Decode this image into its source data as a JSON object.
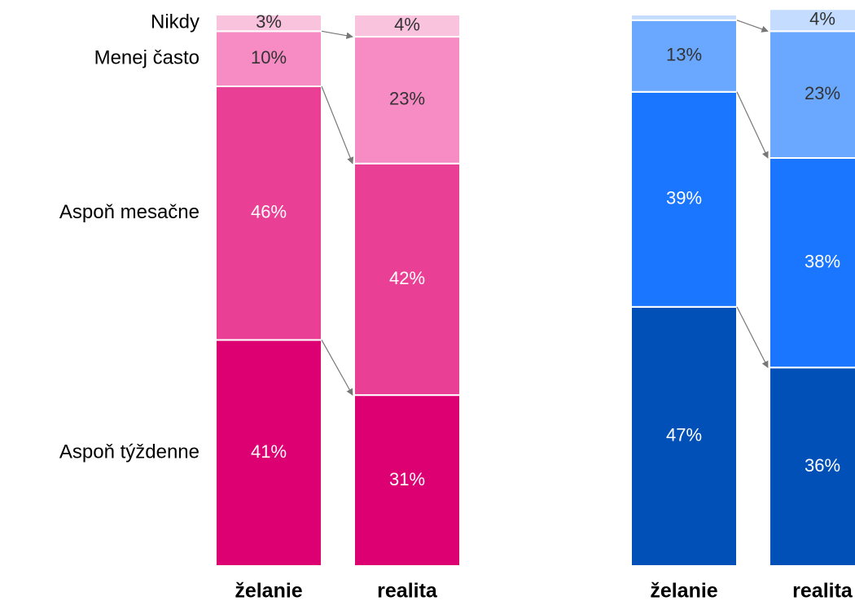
{
  "chart_data": [
    {
      "type": "stacked_bar",
      "categories": [
        "želanie",
        "realita"
      ],
      "ylim": [
        0,
        100
      ],
      "series": [
        {
          "name": "Aspoň týždenne",
          "color": "#dc0073",
          "values": [
            41,
            31
          ],
          "value_labels": [
            "41%",
            "31%"
          ]
        },
        {
          "name": "Aspoň mesačne",
          "color": "#e94096",
          "values": [
            46,
            42
          ],
          "value_labels": [
            "46%",
            "42%"
          ]
        },
        {
          "name": "Menej často",
          "color": "#f78cc4",
          "values": [
            10,
            23
          ],
          "value_labels": [
            "10%",
            "23%"
          ]
        },
        {
          "name": "Nikdy",
          "color": "#f9c3de",
          "values": [
            3,
            4
          ],
          "value_labels": [
            "3%",
            "4%"
          ]
        }
      ]
    },
    {
      "type": "stacked_bar",
      "categories": [
        "želanie",
        "realita"
      ],
      "ylim": [
        0,
        100
      ],
      "series": [
        {
          "color": "#0050b8",
          "values": [
            47,
            36
          ],
          "value_labels": [
            "47%",
            "36%"
          ]
        },
        {
          "color": "#1a75ff",
          "values": [
            39,
            38
          ],
          "value_labels": [
            "39%",
            "38%"
          ]
        },
        {
          "color": "#6aa8ff",
          "values": [
            13,
            23
          ],
          "value_labels": [
            "13%",
            "23%"
          ]
        },
        {
          "color": "#c3dcff",
          "values": [
            1,
            4
          ],
          "value_labels": [
            null,
            "4%"
          ]
        }
      ]
    }
  ]
}
